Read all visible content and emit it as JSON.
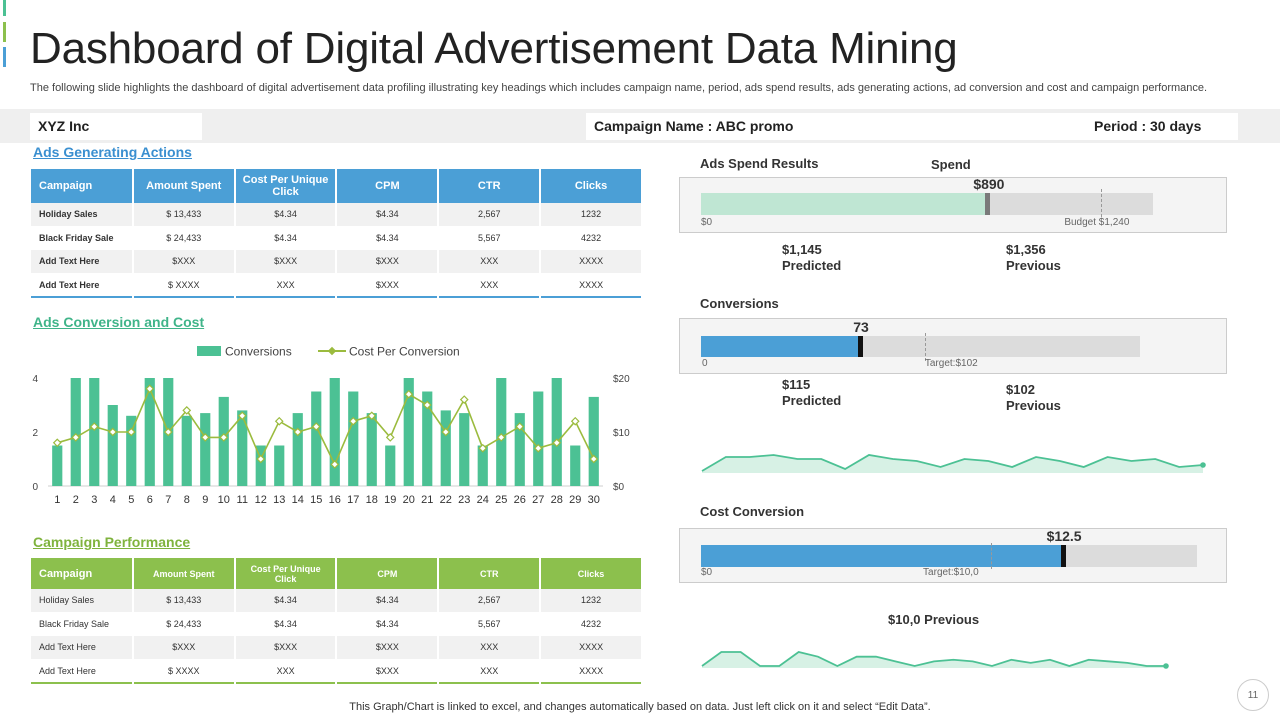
{
  "header": {
    "title": "Dashboard of Digital Advertisement Data Mining",
    "subtitle": "The following slide highlights the dashboard of digital advertisement data profiling illustrating key headings which includes  campaign name, period, ads spend results, ads generating actions, ad conversion and cost and campaign performance."
  },
  "info": {
    "company": "XYZ Inc",
    "campaign": "Campaign Name : ABC promo",
    "period": "Period : 30 days"
  },
  "colors": {
    "blue": "#4b9fd6",
    "green": "#8cc04d",
    "teal": "#4cc194",
    "line": "#9bbb3e",
    "accent_1": "#4cc194",
    "accent_2": "#8cc04d",
    "accent_3": "#4b9fd6"
  },
  "ads_generating": {
    "heading": "Ads  Generating Actions",
    "columns": [
      "Campaign",
      "Amount Spent",
      "Cost Per Unique Click",
      "CPM",
      "CTR",
      "Clicks"
    ],
    "rows": [
      [
        "Holiday Sales",
        "$ 13,433",
        "$4.34",
        "$4.34",
        "2,567",
        "1232"
      ],
      [
        "Black Friday Sale",
        "$ 24,433",
        "$4.34",
        "$4.34",
        "5,567",
        "4232"
      ],
      [
        "Add Text Here",
        "$XXX",
        "$XXX",
        "$XXX",
        "XXX",
        "XXXX"
      ],
      [
        "Add Text Here",
        "$ XXXX",
        "XXX",
        "$XXX",
        "XXX",
        "XXXX"
      ]
    ]
  },
  "conversion_section": {
    "heading": "Ads  Conversion and Cost"
  },
  "campaign_performance": {
    "heading": "Campaign Performance",
    "columns": [
      "Campaign",
      "Amount Spent",
      "Cost Per Unique Click",
      "CPM",
      "CTR",
      "Clicks"
    ],
    "rows": [
      [
        "Holiday Sales",
        "$ 13,433",
        "$4.34",
        "$4.34",
        "2,567",
        "1232"
      ],
      [
        "Black Friday Sale",
        "$ 24,433",
        "$4.34",
        "$4.34",
        "5,567",
        "4232"
      ],
      [
        "Add Text Here",
        "$XXX",
        "$XXX",
        "$XXX",
        "XXX",
        "XXXX"
      ],
      [
        "Add Text Here",
        "$ XXXX",
        "XXX",
        "$XXX",
        "XXX",
        "XXXX"
      ]
    ]
  },
  "spend": {
    "heading": "Ads  Spend Results",
    "label": "Spend",
    "value_label": "$890",
    "value": 890,
    "max": 1400,
    "budget": 1240,
    "zero_label": "$0",
    "budget_label": "Budget $1,240",
    "predicted_value": "$1,145",
    "predicted_label": "Predicted",
    "previous_value": "$1,356",
    "previous_label": "Previous"
  },
  "conversions_gauge": {
    "heading": "Conversions",
    "value_label": "73",
    "value": 73,
    "max": 200,
    "target": 102,
    "zero_label": "0",
    "target_label": "Target:$102",
    "predicted_value": "$115",
    "predicted_label": "Predicted",
    "previous_value": "$102",
    "previous_label": "Previous",
    "sparkline": [
      5,
      12,
      12,
      13,
      11,
      11,
      6,
      13,
      11,
      10,
      7,
      11,
      10,
      7,
      12,
      10,
      7,
      12,
      10,
      11,
      7,
      8
    ]
  },
  "cost_conversion": {
    "heading": "Cost Conversion",
    "value_label": "$12.5",
    "value": 12.5,
    "max": 17.1,
    "target": 10,
    "zero_label": "$0",
    "target_label": "Target:$10,0",
    "previous_text": "$10,0 Previous",
    "sparkline": [
      5,
      14,
      14,
      5,
      5,
      14,
      11,
      5,
      11,
      11,
      8,
      5,
      8,
      9,
      8,
      5,
      9,
      7,
      9,
      5,
      9,
      8,
      7,
      5,
      5
    ]
  },
  "chart_data": {
    "type": "bar",
    "title": "",
    "xlabel": "",
    "ylabel": "",
    "categories": [
      "1",
      "2",
      "3",
      "4",
      "5",
      "6",
      "7",
      "8",
      "9",
      "10",
      "11",
      "12",
      "13",
      "14",
      "15",
      "16",
      "17",
      "18",
      "19",
      "20",
      "21",
      "22",
      "23",
      "24",
      "25",
      "26",
      "27",
      "28",
      "29",
      "30"
    ],
    "series": [
      {
        "name": "Conversions",
        "type": "bar",
        "axis": "left",
        "values": [
          1.5,
          4,
          4,
          3,
          2.6,
          4,
          4,
          2.6,
          2.7,
          3.3,
          2.8,
          1.5,
          1.5,
          2.7,
          3.5,
          4,
          3.5,
          2.7,
          1.5,
          4,
          3.5,
          2.8,
          2.7,
          1.5,
          4,
          2.7,
          3.5,
          4,
          1.5,
          3.3
        ]
      },
      {
        "name": "Cost Per Conversion",
        "type": "line",
        "axis": "right",
        "values": [
          8,
          9,
          11,
          10,
          10,
          18,
          10,
          14,
          9,
          9,
          13,
          5,
          12,
          10,
          11,
          4,
          12,
          13,
          9,
          17,
          15,
          10,
          16,
          7,
          9,
          11,
          7,
          8,
          12,
          5
        ]
      }
    ],
    "ylim": [
      0,
      4
    ],
    "yticks": [
      "0",
      "2",
      "4"
    ],
    "y2lim": [
      0,
      20
    ],
    "y2ticks": [
      "$0",
      "$10",
      "$20"
    ],
    "legend": "top-center",
    "grid": false
  },
  "footer": {
    "note": "This Graph/Chart is linked to excel,  and changes automatically based on data. Just left click on it and select “Edit Data”.",
    "page": "11"
  }
}
